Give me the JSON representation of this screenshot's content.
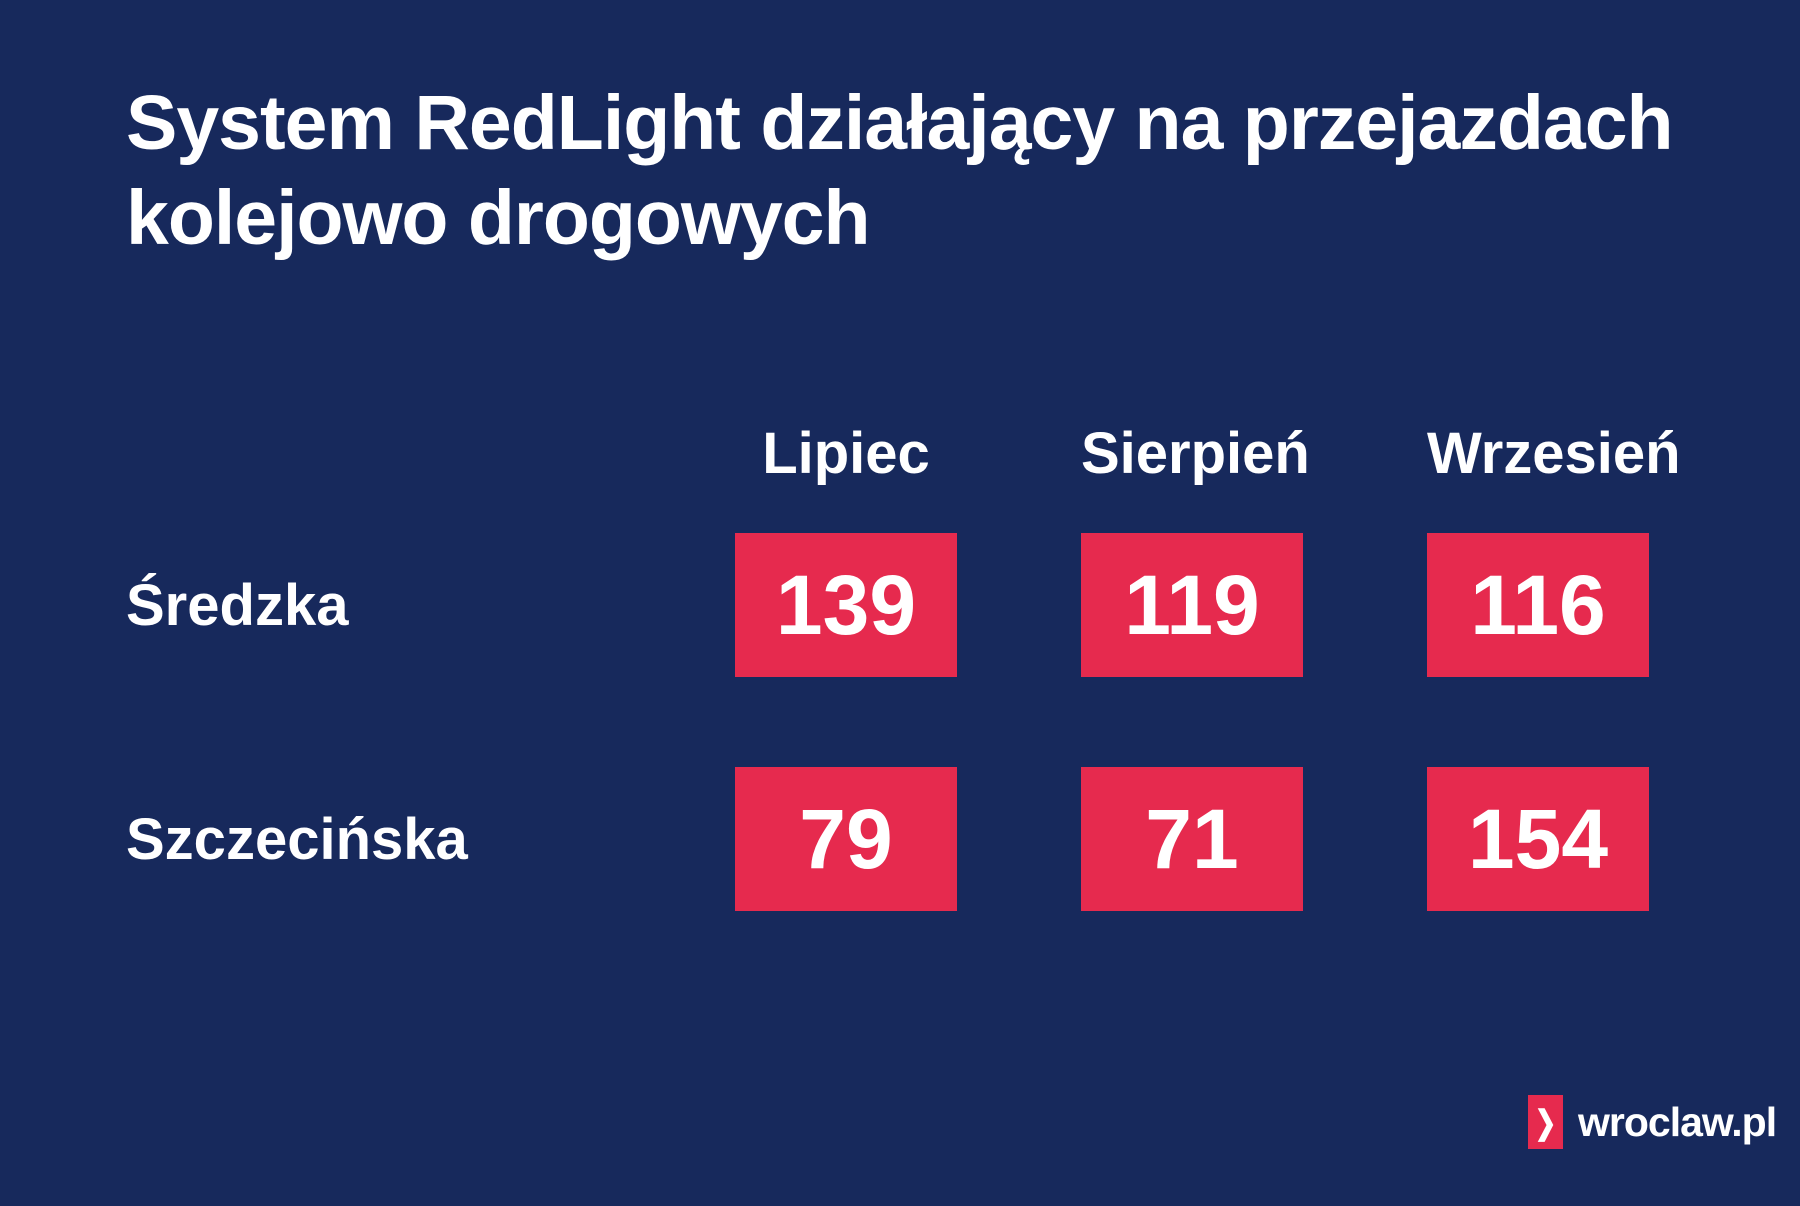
{
  "colors": {
    "background": "#17295C",
    "accent_red": "#E62A4E",
    "text": "#FFFFFF"
  },
  "title": {
    "text": "System RedLight działający na przejazdach kolejowo drogowych"
  },
  "table": {
    "columns": [
      "Lipiec",
      "Sierpień",
      "Wrzesień"
    ],
    "rows": [
      {
        "label": "Średzka",
        "values": [
          "139",
          "119",
          "116"
        ]
      },
      {
        "label": "Szczecińska",
        "values": [
          "79",
          "71",
          "154"
        ]
      }
    ]
  },
  "chart_data": {
    "type": "table",
    "title": "System RedLight działający na przejazdach kolejowo drogowych",
    "categories": [
      "Lipiec",
      "Sierpień",
      "Wrzesień"
    ],
    "series": [
      {
        "name": "Średzka",
        "values": [
          139,
          119,
          116
        ]
      },
      {
        "name": "Szczecińska",
        "values": [
          79,
          71,
          154
        ]
      }
    ]
  },
  "footer": {
    "logo_chevron": "❯",
    "logo_text": "wroclaw.pl"
  }
}
